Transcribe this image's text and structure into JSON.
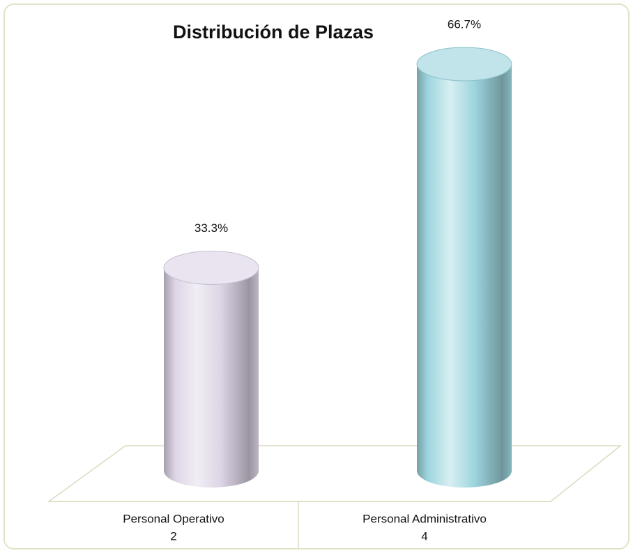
{
  "chart_data": {
    "type": "cylinder-bar",
    "title": "Distribución de Plazas",
    "categories": [
      "Personal Operativo",
      "Personal Administrativo"
    ],
    "counts": [
      2,
      4
    ],
    "values": [
      33.3,
      66.7
    ],
    "value_labels": [
      "33.3%",
      "66.7%"
    ],
    "colors": [
      "#ddd5e6",
      "#9ed6df"
    ]
  }
}
